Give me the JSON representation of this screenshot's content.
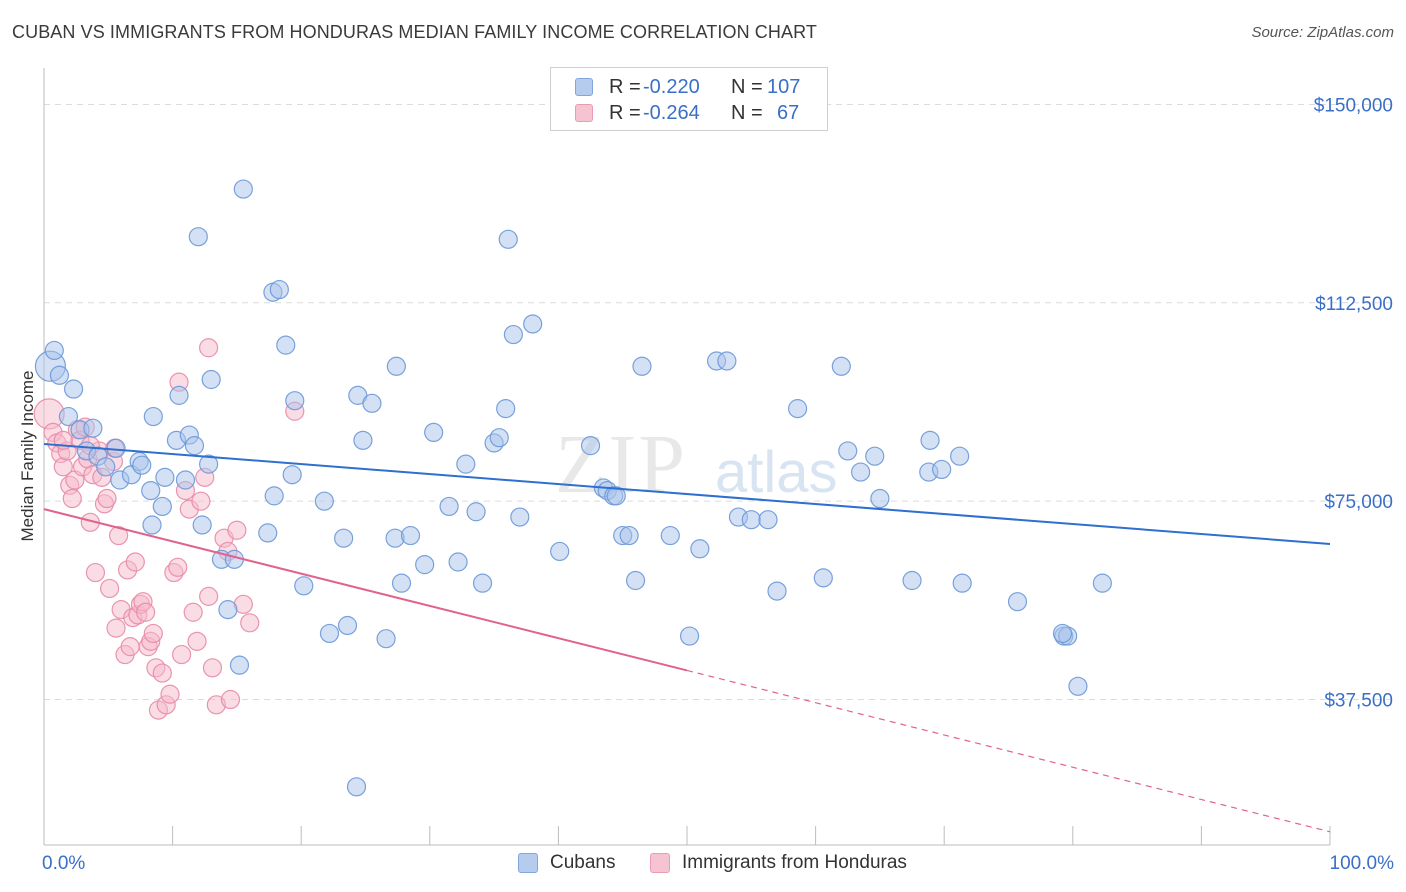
{
  "title": "CUBAN VS IMMIGRANTS FROM HONDURAS MEDIAN FAMILY INCOME CORRELATION CHART",
  "source": "Source: ZipAtlas.com",
  "watermark": {
    "zip": "ZIP",
    "atlas": "atlas"
  },
  "legend": {
    "r_label": "R =",
    "n_label": "N =",
    "rows": [
      {
        "r": "-0.220",
        "n": "107"
      },
      {
        "r": "-0.264",
        "n": "67"
      }
    ]
  },
  "bottom_legend": {
    "cubans": "Cubans",
    "honduras": "Immigrants from Honduras"
  },
  "colors": {
    "blue_fill": "#a9c4ec",
    "blue_stroke": "#6a98d8",
    "blue_line": "#2e6fcf",
    "pink_fill": "#f5b9cb",
    "pink_stroke": "#e88aa7",
    "pink_line": "#e0638f",
    "axis_label": "#3a6fc7"
  },
  "chart_data": {
    "type": "scatter",
    "title": "CUBAN VS IMMIGRANTS FROM HONDURAS MEDIAN FAMILY INCOME CORRELATION CHART",
    "xlabel": "",
    "ylabel": "Median Family Income",
    "xlim": [
      0,
      100
    ],
    "ylim": [
      10000,
      155000
    ],
    "x_tick_labels": [
      "0.0%",
      "100.0%"
    ],
    "y_ticks": [
      37500,
      75000,
      112500,
      150000
    ],
    "y_tick_labels": [
      "$37,500",
      "$75,000",
      "$112,500",
      "$150,000"
    ],
    "grid": true,
    "series": [
      {
        "name": "Cubans",
        "R": -0.22,
        "N": 107,
        "trend": {
          "x": [
            0,
            100
          ],
          "y": [
            85800,
            66900
          ],
          "dashed_from": null
        },
        "points": [
          [
            0.5,
            100500
          ],
          [
            0.8,
            103500
          ],
          [
            1.2,
            98800
          ],
          [
            2.3,
            96200
          ],
          [
            1.9,
            91000
          ],
          [
            2.8,
            88500
          ],
          [
            3.8,
            88800
          ],
          [
            3.3,
            84500
          ],
          [
            4.2,
            83500
          ],
          [
            4.8,
            81500
          ],
          [
            5.6,
            85000
          ],
          [
            5.9,
            79000
          ],
          [
            6.8,
            80000
          ],
          [
            7.4,
            82500
          ],
          [
            7.6,
            81800
          ],
          [
            8.3,
            77000
          ],
          [
            8.5,
            91000
          ],
          [
            9.2,
            74000
          ],
          [
            9.4,
            79500
          ],
          [
            8.4,
            70500
          ],
          [
            10.3,
            86500
          ],
          [
            10.5,
            95000
          ],
          [
            11.0,
            79000
          ],
          [
            11.3,
            87500
          ],
          [
            12.8,
            82000
          ],
          [
            11.7,
            85500
          ],
          [
            13.0,
            98000
          ],
          [
            13.8,
            64000
          ],
          [
            12.3,
            70500
          ],
          [
            14.3,
            54500
          ],
          [
            14.8,
            64000
          ],
          [
            15.2,
            44000
          ],
          [
            17.4,
            69000
          ],
          [
            17.9,
            76000
          ],
          [
            18.8,
            104500
          ],
          [
            19.3,
            80000
          ],
          [
            19.5,
            94000
          ],
          [
            20.2,
            59000
          ],
          [
            21.8,
            75000
          ],
          [
            23.3,
            68000
          ],
          [
            23.6,
            51500
          ],
          [
            22.2,
            50000
          ],
          [
            24.4,
            95000
          ],
          [
            24.8,
            86500
          ],
          [
            25.5,
            93500
          ],
          [
            27.3,
            68000
          ],
          [
            27.4,
            100500
          ],
          [
            26.6,
            49000
          ],
          [
            27.8,
            59500
          ],
          [
            28.5,
            68500
          ],
          [
            29.6,
            63000
          ],
          [
            30.3,
            88000
          ],
          [
            31.5,
            74000
          ],
          [
            32.2,
            63500
          ],
          [
            32.8,
            82000
          ],
          [
            33.6,
            73000
          ],
          [
            34.1,
            59500
          ],
          [
            35.0,
            86000
          ],
          [
            35.4,
            87000
          ],
          [
            35.9,
            92500
          ],
          [
            37.0,
            72000
          ],
          [
            36.5,
            106500
          ],
          [
            36.1,
            124500
          ],
          [
            38.0,
            108500
          ],
          [
            40.1,
            65500
          ],
          [
            42.5,
            85500
          ],
          [
            43.5,
            77500
          ],
          [
            43.8,
            77000
          ],
          [
            44.3,
            76000
          ],
          [
            44.5,
            76000
          ],
          [
            45.0,
            68500
          ],
          [
            45.5,
            68500
          ],
          [
            46.0,
            60000
          ],
          [
            46.5,
            100500
          ],
          [
            48.7,
            68500
          ],
          [
            50.2,
            49500
          ],
          [
            51.0,
            66000
          ],
          [
            52.3,
            101500
          ],
          [
            53.1,
            101500
          ],
          [
            54.0,
            72000
          ],
          [
            55.0,
            71500
          ],
          [
            56.3,
            71500
          ],
          [
            57.0,
            58000
          ],
          [
            58.6,
            92500
          ],
          [
            60.6,
            60500
          ],
          [
            62.0,
            100500
          ],
          [
            62.5,
            84500
          ],
          [
            63.5,
            80500
          ],
          [
            64.6,
            83500
          ],
          [
            65.0,
            75500
          ],
          [
            67.5,
            60000
          ],
          [
            68.8,
            80500
          ],
          [
            68.9,
            86500
          ],
          [
            69.8,
            81000
          ],
          [
            71.2,
            83500
          ],
          [
            71.4,
            59500
          ],
          [
            75.7,
            56000
          ],
          [
            79.3,
            49500
          ],
          [
            79.6,
            49500
          ],
          [
            82.3,
            59500
          ],
          [
            79.2,
            50000
          ],
          [
            80.4,
            40000
          ],
          [
            24.3,
            21000
          ],
          [
            15.5,
            134000
          ],
          [
            17.8,
            114500
          ],
          [
            18.3,
            115000
          ],
          [
            12.0,
            125000
          ]
        ]
      },
      {
        "name": "Immigrants from Honduras",
        "R": -0.264,
        "N": 67,
        "trend": {
          "x": [
            0,
            100
          ],
          "y": [
            73500,
            12500
          ],
          "dashed_from": 50
        },
        "points": [
          [
            0.4,
            91500
          ],
          [
            0.7,
            88000
          ],
          [
            1.0,
            86000
          ],
          [
            1.3,
            84000
          ],
          [
            1.5,
            81500
          ],
          [
            1.8,
            84500
          ],
          [
            2.0,
            78000
          ],
          [
            2.2,
            75500
          ],
          [
            2.4,
            79000
          ],
          [
            2.6,
            88500
          ],
          [
            2.8,
            86500
          ],
          [
            3.0,
            81500
          ],
          [
            3.2,
            89000
          ],
          [
            3.4,
            83000
          ],
          [
            3.6,
            71000
          ],
          [
            3.8,
            80000
          ],
          [
            4.0,
            61500
          ],
          [
            4.3,
            84500
          ],
          [
            4.5,
            79500
          ],
          [
            4.7,
            74500
          ],
          [
            4.9,
            75500
          ],
          [
            5.1,
            58500
          ],
          [
            5.4,
            82500
          ],
          [
            5.6,
            51000
          ],
          [
            5.8,
            68500
          ],
          [
            6.0,
            54500
          ],
          [
            6.3,
            46000
          ],
          [
            6.5,
            62000
          ],
          [
            6.7,
            47500
          ],
          [
            6.9,
            53000
          ],
          [
            7.1,
            63500
          ],
          [
            7.3,
            53500
          ],
          [
            7.5,
            55500
          ],
          [
            7.7,
            56000
          ],
          [
            7.9,
            54000
          ],
          [
            8.1,
            47500
          ],
          [
            8.3,
            48500
          ],
          [
            8.5,
            50000
          ],
          [
            8.7,
            43500
          ],
          [
            8.9,
            35500
          ],
          [
            9.2,
            42500
          ],
          [
            9.5,
            36500
          ],
          [
            9.8,
            38500
          ],
          [
            10.1,
            61500
          ],
          [
            10.4,
            62500
          ],
          [
            10.7,
            46000
          ],
          [
            11.0,
            77000
          ],
          [
            11.3,
            73500
          ],
          [
            11.6,
            54000
          ],
          [
            11.9,
            48500
          ],
          [
            12.2,
            75000
          ],
          [
            12.5,
            79500
          ],
          [
            12.8,
            57000
          ],
          [
            13.1,
            43500
          ],
          [
            13.4,
            36500
          ],
          [
            14.0,
            68000
          ],
          [
            14.3,
            65500
          ],
          [
            14.5,
            37500
          ],
          [
            15.0,
            69500
          ],
          [
            15.5,
            55500
          ],
          [
            16.0,
            52000
          ],
          [
            19.5,
            92000
          ],
          [
            12.8,
            104000
          ],
          [
            10.5,
            97500
          ],
          [
            5.5,
            85000
          ],
          [
            3.6,
            85500
          ],
          [
            1.5,
            86500
          ]
        ]
      }
    ]
  }
}
